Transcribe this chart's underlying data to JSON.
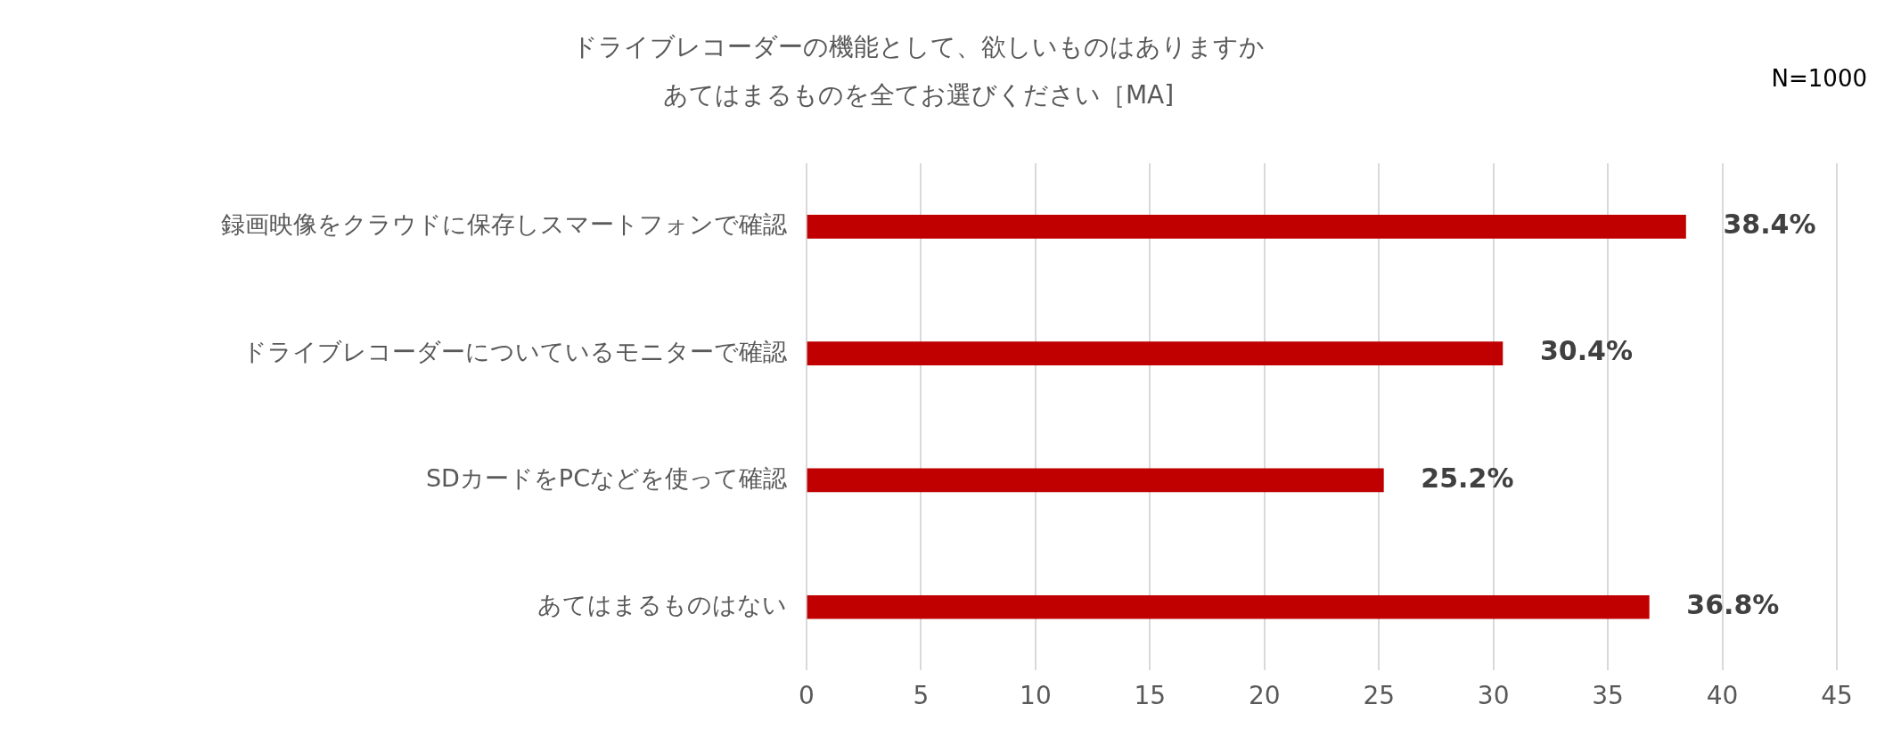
{
  "chart_data": {
    "type": "bar",
    "orientation": "horizontal",
    "title": "ドライブレコーダーの機能として、欲しいものはありますか",
    "subtitle": "あてはまるものを全てお選びください［MA]",
    "categories": [
      "録画映像をクラウドに保存しスマートフォンで確認",
      "ドライブレコーダーについているモニターで確認",
      "SDカードをPCなどを使って確認",
      "あてはまるものはない"
    ],
    "values": [
      38.4,
      30.4,
      25.2,
      36.8
    ],
    "value_labels": [
      "38.4%",
      "30.4%",
      "25.2%",
      "36.8%"
    ],
    "color": "#c00000",
    "xlim": [
      0,
      45
    ],
    "xticks": [
      0,
      5,
      10,
      15,
      20,
      25,
      30,
      35,
      40,
      45
    ],
    "grid": "x",
    "legend": false,
    "annotations": [
      "N=1000"
    ]
  }
}
